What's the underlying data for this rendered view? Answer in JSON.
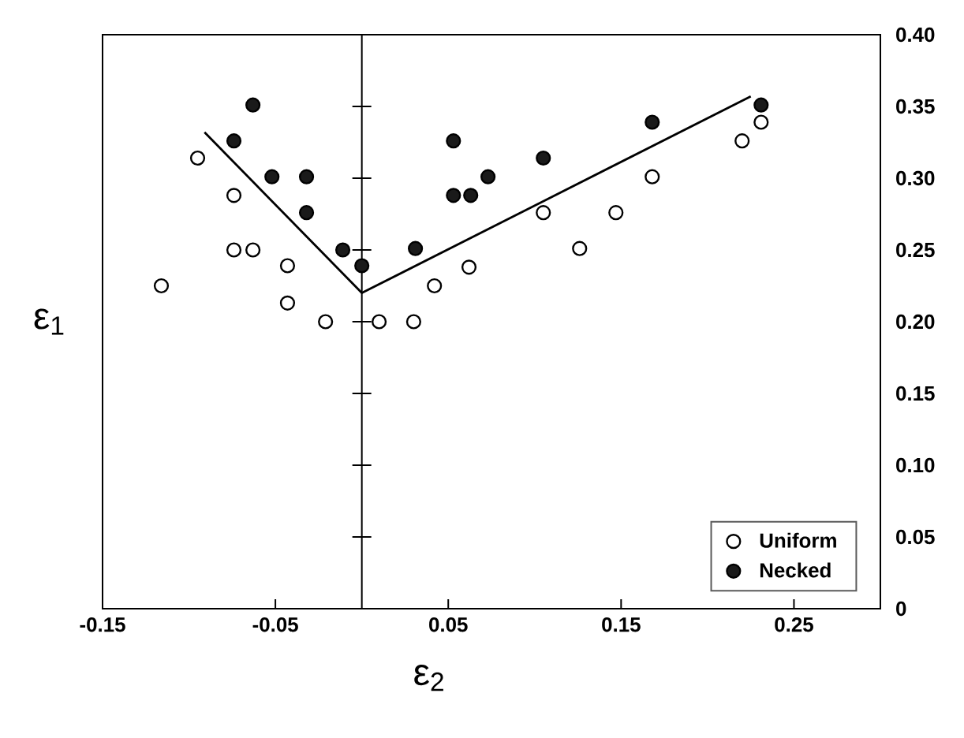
{
  "chart_data": {
    "type": "scatter",
    "xlabel": "ε$_{2}$",
    "ylabel": "ε$_{1}$",
    "xlim": [
      -0.15,
      0.3
    ],
    "ylim": [
      0,
      0.4
    ],
    "xticks": [
      -0.15,
      -0.05,
      0.05,
      0.15,
      0.25
    ],
    "yticks": [
      0,
      0.05,
      {
        "value": 0.1,
        "label": "0.10"
      },
      0.15,
      {
        "value": 0.2,
        "label": "0.20"
      },
      0.25,
      {
        "value": 0.3,
        "label": "0.30"
      },
      0.35,
      {
        "value": 0.4,
        "label": "0.40"
      }
    ],
    "marker": "circle",
    "legend": "bottom right",
    "grid": false,
    "ref_lines": [
      {
        "axis": "x",
        "value": 0,
        "color": "#000000"
      }
    ],
    "series": [
      {
        "name": "Uniform",
        "color": "#ffffff",
        "x": [
          -0.095,
          -0.074,
          -0.074,
          -0.063,
          -0.043,
          -0.116,
          -0.043,
          -0.021,
          0.01,
          0.03,
          0.042,
          0.062,
          0.105,
          0.126,
          0.147,
          0.168,
          0.22,
          0.231
        ],
        "values": [
          0.314,
          0.288,
          0.25,
          0.25,
          0.239,
          0.225,
          0.213,
          0.2,
          0.2,
          0.2,
          0.225,
          0.238,
          0.276,
          0.251,
          0.276,
          0.301,
          0.326,
          0.339
        ]
      },
      {
        "name": "Necked",
        "color": "#1a1a1a",
        "x": [
          -0.063,
          -0.074,
          -0.052,
          -0.032,
          -0.032,
          -0.011,
          0.0,
          0.031,
          0.053,
          0.053,
          0.063,
          0.073,
          0.105,
          0.168,
          0.231
        ],
        "values": [
          0.351,
          0.326,
          0.301,
          0.301,
          0.276,
          0.25,
          0.239,
          0.251,
          0.326,
          0.288,
          0.288,
          0.301,
          0.314,
          0.339,
          0.351
        ]
      },
      {
        "type": "line",
        "marker": "none",
        "color": "#000000",
        "x": [
          -0.091,
          0.0,
          0.225
        ],
        "values": [
          0.332,
          0.22,
          0.357
        ]
      }
    ]
  }
}
